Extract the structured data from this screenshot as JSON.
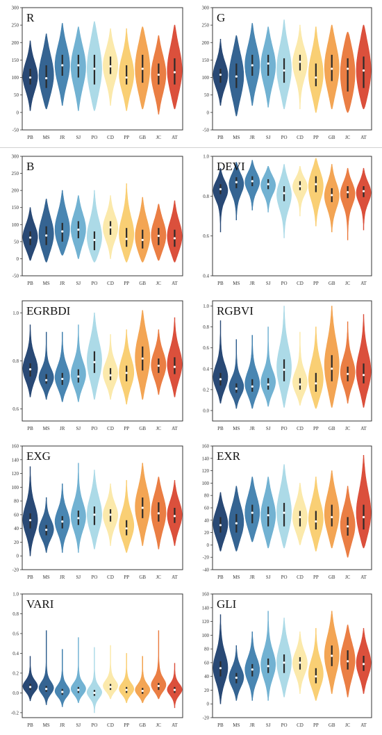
{
  "figure": {
    "categories": [
      "PB",
      "MS",
      "JR",
      "SJ",
      "PO",
      "CD",
      "PP",
      "GB",
      "JC",
      "AT"
    ],
    "colors": [
      "#1d3f6e",
      "#2a5c8c",
      "#3f7fae",
      "#6aaed0",
      "#a8d8e6",
      "#fbe8a6",
      "#f9cc6d",
      "#f2a04b",
      "#e9773a",
      "#d94732"
    ],
    "median_marker_color": "#ffffff",
    "box_color": "#2b2b2b"
  },
  "chart_data": [
    {
      "type": "violin",
      "title": "R",
      "ylim": [
        -50,
        300
      ],
      "ticks": [
        -50,
        0,
        50,
        100,
        150,
        200,
        250,
        300
      ],
      "medians": [
        100,
        98,
        135,
        135,
        125,
        132,
        100,
        125,
        108,
        115
      ],
      "q1": [
        80,
        70,
        105,
        100,
        80,
        110,
        80,
        85,
        80,
        80
      ],
      "q3": [
        125,
        135,
        165,
        165,
        165,
        160,
        135,
        165,
        140,
        155
      ],
      "mins": [
        5,
        10,
        20,
        5,
        5,
        20,
        5,
        10,
        -5,
        10
      ],
      "maxs": [
        205,
        225,
        255,
        245,
        260,
        240,
        240,
        245,
        220,
        250
      ]
    },
    {
      "type": "violin",
      "title": "G",
      "ylim": [
        -50,
        300
      ],
      "ticks": [
        -50,
        0,
        50,
        100,
        150,
        200,
        250,
        300
      ],
      "medians": [
        108,
        103,
        135,
        140,
        120,
        145,
        100,
        125,
        125,
        120
      ],
      "q1": [
        85,
        70,
        105,
        105,
        85,
        120,
        75,
        90,
        60,
        70
      ],
      "q3": [
        125,
        140,
        165,
        165,
        155,
        165,
        140,
        165,
        155,
        160
      ],
      "mins": [
        20,
        -10,
        20,
        15,
        10,
        10,
        0,
        10,
        0,
        10
      ],
      "maxs": [
        210,
        220,
        255,
        245,
        265,
        250,
        245,
        250,
        230,
        250
      ]
    },
    {
      "type": "violin",
      "title": "B",
      "ylim": [
        -50,
        300
      ],
      "ticks": [
        -50,
        0,
        50,
        100,
        150,
        200,
        250,
        300
      ],
      "medians": [
        62,
        68,
        80,
        85,
        55,
        92,
        58,
        55,
        67,
        60
      ],
      "q1": [
        40,
        40,
        50,
        60,
        25,
        70,
        35,
        30,
        40,
        35
      ],
      "q3": [
        80,
        95,
        105,
        110,
        80,
        110,
        90,
        85,
        90,
        85
      ],
      "mins": [
        -5,
        -10,
        10,
        0,
        -10,
        0,
        -10,
        -10,
        -5,
        -10
      ],
      "maxs": [
        150,
        175,
        200,
        185,
        200,
        185,
        220,
        180,
        160,
        170
      ]
    },
    {
      "type": "violin",
      "title": "DEVI",
      "ylim": [
        0.4,
        1.0
      ],
      "ticks": [
        0.4,
        0.6,
        0.8,
        1.0
      ],
      "medians": [
        0.835,
        0.87,
        0.875,
        0.86,
        0.815,
        0.85,
        0.86,
        0.805,
        0.82,
        0.825
      ],
      "q1": [
        0.81,
        0.84,
        0.85,
        0.835,
        0.775,
        0.83,
        0.82,
        0.77,
        0.79,
        0.795
      ],
      "q3": [
        0.86,
        0.895,
        0.9,
        0.885,
        0.85,
        0.875,
        0.9,
        0.84,
        0.85,
        0.85
      ],
      "mins": [
        0.62,
        0.68,
        0.73,
        0.72,
        0.59,
        0.7,
        0.65,
        0.62,
        0.58,
        0.63
      ],
      "maxs": [
        0.94,
        0.97,
        0.98,
        0.95,
        0.96,
        0.95,
        0.99,
        0.96,
        0.94,
        0.94
      ]
    },
    {
      "type": "violin",
      "title": "EGRBDI",
      "ylim": [
        0.55,
        1.05
      ],
      "ticks": [
        0.6,
        0.8,
        1.0
      ],
      "medians": [
        0.765,
        0.72,
        0.725,
        0.735,
        0.795,
        0.74,
        0.75,
        0.81,
        0.78,
        0.775
      ],
      "q1": [
        0.735,
        0.705,
        0.7,
        0.71,
        0.75,
        0.72,
        0.715,
        0.76,
        0.75,
        0.745
      ],
      "q3": [
        0.79,
        0.745,
        0.75,
        0.765,
        0.84,
        0.77,
        0.78,
        0.86,
        0.81,
        0.815
      ],
      "mins": [
        0.65,
        0.64,
        0.63,
        0.63,
        0.64,
        0.64,
        0.62,
        0.64,
        0.66,
        0.65
      ],
      "maxs": [
        0.95,
        0.92,
        0.92,
        0.95,
        1.0,
        0.91,
        0.93,
        1.01,
        0.93,
        0.98
      ]
    },
    {
      "type": "violin",
      "title": "RGBVI",
      "ylim": [
        -0.1,
        1.05
      ],
      "ticks": [
        0.0,
        0.2,
        0.4,
        0.6,
        0.8,
        1.0
      ],
      "medians": [
        0.3,
        0.21,
        0.23,
        0.25,
        0.39,
        0.25,
        0.26,
        0.4,
        0.35,
        0.34
      ],
      "q1": [
        0.24,
        0.17,
        0.18,
        0.2,
        0.28,
        0.2,
        0.18,
        0.28,
        0.28,
        0.26
      ],
      "q3": [
        0.36,
        0.26,
        0.3,
        0.31,
        0.49,
        0.31,
        0.36,
        0.53,
        0.42,
        0.45
      ],
      "mins": [
        0.07,
        0.02,
        0.02,
        0.04,
        0.03,
        0.05,
        0.02,
        0.03,
        0.07,
        0.03
      ],
      "maxs": [
        0.86,
        0.68,
        0.72,
        0.8,
        1.0,
        0.75,
        0.8,
        1.0,
        0.85,
        0.92
      ]
    },
    {
      "type": "violin",
      "title": "EXG",
      "ylim": [
        -20,
        160
      ],
      "ticks": [
        -20,
        0,
        20,
        40,
        60,
        80,
        100,
        120,
        140,
        160
      ],
      "medians": [
        52,
        38,
        50,
        55,
        60,
        60,
        40,
        70,
        62,
        58
      ],
      "q1": [
        40,
        30,
        40,
        45,
        45,
        50,
        30,
        55,
        50,
        48
      ],
      "q3": [
        62,
        45,
        58,
        66,
        72,
        68,
        52,
        85,
        78,
        70
      ],
      "mins": [
        0,
        5,
        5,
        5,
        10,
        15,
        5,
        15,
        10,
        15
      ],
      "maxs": [
        130,
        85,
        105,
        135,
        125,
        105,
        110,
        135,
        115,
        110
      ]
    },
    {
      "type": "violin",
      "title": "EXR",
      "ylim": [
        -40,
        160
      ],
      "ticks": [
        -40,
        -20,
        0,
        20,
        40,
        60,
        80,
        100,
        120,
        140,
        160
      ],
      "medians": [
        32,
        35,
        52,
        48,
        52,
        45,
        38,
        45,
        30,
        45
      ],
      "q1": [
        20,
        20,
        35,
        30,
        30,
        30,
        25,
        30,
        15,
        25
      ],
      "q3": [
        45,
        50,
        65,
        62,
        68,
        55,
        55,
        65,
        45,
        65
      ],
      "mins": [
        -10,
        -10,
        5,
        -5,
        -5,
        0,
        -10,
        -5,
        -20,
        -5
      ],
      "maxs": [
        85,
        95,
        110,
        110,
        130,
        100,
        110,
        120,
        95,
        145
      ]
    },
    {
      "type": "violin",
      "title": "VARI",
      "ylim": [
        -0.25,
        1.0
      ],
      "ticks": [
        -0.2,
        0.0,
        0.2,
        0.4,
        0.6,
        0.8,
        1.0
      ],
      "medians": [
        0.06,
        0.04,
        0.01,
        0.03,
        0.0,
        0.06,
        0.03,
        0.02,
        0.07,
        0.03
      ],
      "q1": [
        0.03,
        0.01,
        -0.02,
        0.0,
        -0.03,
        0.03,
        0.0,
        -0.01,
        0.03,
        0.0
      ],
      "q3": [
        0.09,
        0.07,
        0.04,
        0.06,
        0.03,
        0.09,
        0.06,
        0.05,
        0.1,
        0.06
      ],
      "mins": [
        -0.08,
        -0.12,
        -0.14,
        -0.1,
        -0.2,
        -0.06,
        -0.1,
        -0.1,
        -0.06,
        -0.15
      ],
      "maxs": [
        0.37,
        0.63,
        0.44,
        0.56,
        0.46,
        0.48,
        0.4,
        0.37,
        0.63,
        0.3
      ]
    },
    {
      "type": "violin",
      "title": "GLI",
      "ylim": [
        -20,
        160
      ],
      "ticks": [
        -20,
        0,
        20,
        40,
        60,
        80,
        100,
        120,
        140,
        160
      ],
      "medians": [
        52,
        38,
        50,
        55,
        60,
        60,
        40,
        70,
        62,
        58
      ],
      "q1": [
        40,
        30,
        40,
        45,
        45,
        50,
        30,
        55,
        50,
        48
      ],
      "q3": [
        62,
        45,
        58,
        66,
        72,
        68,
        52,
        85,
        78,
        70
      ],
      "mins": [
        0,
        5,
        5,
        5,
        10,
        15,
        5,
        15,
        10,
        15
      ],
      "maxs": [
        130,
        85,
        105,
        135,
        125,
        105,
        110,
        135,
        115,
        110
      ]
    }
  ]
}
